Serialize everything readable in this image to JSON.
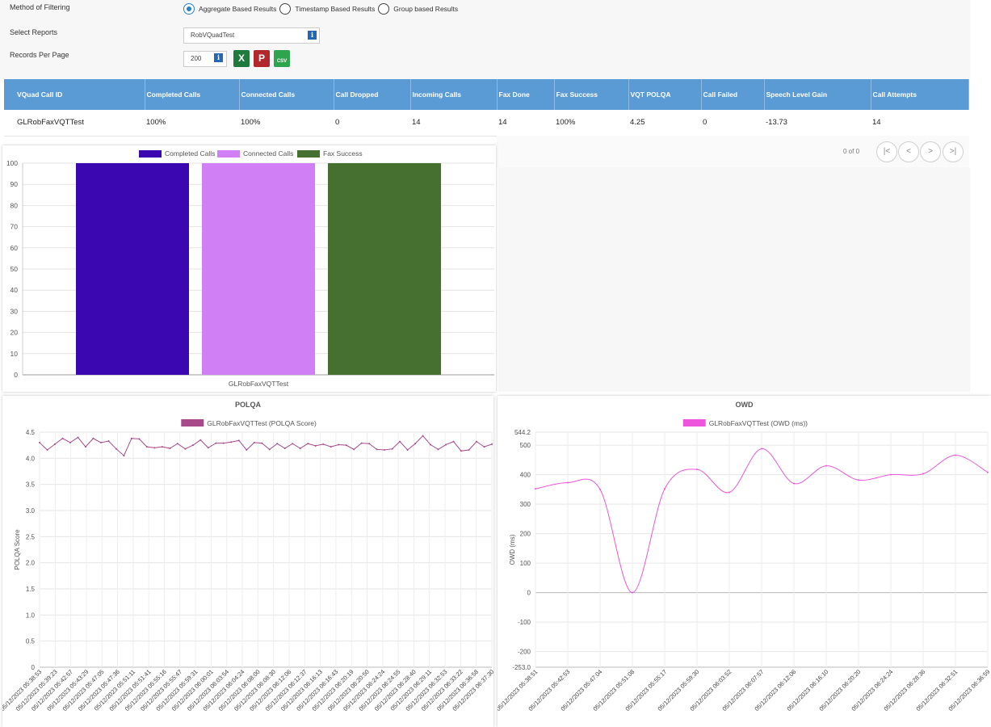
{
  "filter": {
    "method_label": "Method of Filtering",
    "options": [
      {
        "label": "Aggregate Based Results",
        "checked": true
      },
      {
        "label": "Timestamp Based Results",
        "checked": false
      },
      {
        "label": "Group based Results",
        "checked": false
      }
    ],
    "reports_label": "Select Reports",
    "report_value": "RobVQuadTest",
    "records_label": "Records Per Page",
    "records_value": "200",
    "info_glyph": "i",
    "export_icons": [
      "excel-icon",
      "pdf-icon",
      "csv-icon"
    ],
    "excel_glyph": "X",
    "pdf_glyph": "P",
    "csv_glyph": "CSV"
  },
  "table": {
    "headers": [
      "VQuad Call ID",
      "Completed Calls",
      "Connected Calls",
      "Call Dropped",
      "Incoming Calls",
      "Fax Done",
      "Fax Success",
      "VQT POLQA",
      "Call Failed",
      "Speech Level Gain",
      "Call Attempts"
    ],
    "rows": [
      [
        "GLRobFaxVQTTest",
        "100%",
        "100%",
        "0",
        "14",
        "14",
        "100%",
        "4.25",
        "0",
        "-13.73",
        "14"
      ]
    ]
  },
  "pager": {
    "text": "0 of 0",
    "first": "|<",
    "prev": "<",
    "next": ">",
    "last": ">|"
  },
  "colors": {
    "header_bg": "#5b9bd5",
    "completed": "#3a07b0",
    "connected": "#d07ff5",
    "fax": "#46702f",
    "polqa": "#a84a8a",
    "owd": "#ee55dd"
  },
  "chart_data": [
    {
      "type": "bar",
      "categories": [
        "GLRobFaxVQTTest"
      ],
      "series": [
        {
          "name": "Completed Calls",
          "values": [
            100
          ],
          "color": "#3a07b0"
        },
        {
          "name": "Connected Calls",
          "values": [
            100
          ],
          "color": "#d07ff5"
        },
        {
          "name": "Fax Success",
          "values": [
            100
          ],
          "color": "#46702f"
        }
      ],
      "yticks": [
        0,
        10,
        20,
        30,
        40,
        50,
        60,
        70,
        80,
        90,
        100
      ],
      "ylim": [
        0,
        100
      ],
      "legend": "top",
      "grid": true
    },
    {
      "type": "line",
      "title": "POLQA",
      "ylabel": "POLQA Score",
      "ylim": [
        0,
        4.5
      ],
      "yticks": [
        "0",
        "0.5",
        "1.0",
        "1.5",
        "2.0",
        "2.5",
        "3.0",
        "3.5",
        "4.0",
        "4.5"
      ],
      "series": [
        {
          "name": "GLRobFaxVQTTest (POLQA Score)",
          "color": "#a84a8a",
          "values": [
            4.3,
            4.16,
            4.27,
            4.38,
            4.3,
            4.4,
            4.22,
            4.38,
            4.3,
            4.33,
            4.18,
            4.05,
            4.38,
            4.37,
            4.22,
            4.2,
            4.22,
            4.19,
            4.28,
            4.18,
            4.25,
            4.35,
            4.2,
            4.29,
            4.29,
            4.31,
            4.34,
            4.16,
            4.3,
            4.29,
            4.17,
            4.28,
            4.19,
            4.28,
            4.19,
            4.28,
            4.24,
            4.27,
            4.22,
            4.26,
            4.25,
            4.17,
            4.29,
            4.28,
            4.17,
            4.16,
            4.18,
            4.32,
            4.16,
            4.28,
            4.43,
            4.26,
            4.17,
            4.26,
            4.32,
            4.14,
            4.16,
            4.32,
            4.22,
            4.27
          ]
        }
      ],
      "x_labels": [
        "05/12/2023 05:38:53",
        "05/12/2023 05:39:23",
        "05/12/2023 05:42:57",
        "05/12/2023 05:43:29",
        "05/12/2023 05:47:05",
        "05/12/2023 05:47:36",
        "05/12/2023 05:51:11",
        "05/12/2023 05:51:41",
        "05/12/2023 05:55:16",
        "05/12/2023 05:55:47",
        "05/12/2023 05:59:31",
        "05/12/2023 06:00:01",
        "05/12/2023 06:03:54",
        "05/12/2023 06:04:24",
        "05/12/2023 06:08:00",
        "05/12/2023 06:08:30",
        "05/12/2023 06:12:06",
        "05/12/2023 06:12:37",
        "05/12/2023 06:16:13",
        "05/12/2023 06:16:43",
        "05/12/2023 06:20:19",
        "05/12/2023 06:20:50",
        "05/12/2023 06:24:24",
        "05/12/2023 06:24:55",
        "05/12/2023 06:28:40",
        "05/12/2023 06:29:11",
        "05/12/2023 06:32:53",
        "05/12/2023 06:33:22",
        "05/12/2023 06:36:58",
        "05/12/2023 06:37:30"
      ],
      "legend": "top",
      "grid": true
    },
    {
      "type": "line",
      "title": "OWD",
      "ylabel": "OWD (ms)",
      "ylim": [
        -253.0,
        544.2
      ],
      "yticks": [
        "-253.0",
        "-200",
        "-100",
        "0",
        "100",
        "200",
        "300",
        "400",
        "500",
        "544.2"
      ],
      "series": [
        {
          "name": "GLRobFaxVQTTest (OWD (ms))",
          "color": "#ee55dd",
          "values": [
            352,
            373,
            350,
            0,
            352,
            418,
            340,
            488,
            370,
            430,
            382,
            400,
            403,
            466,
            408
          ]
        }
      ],
      "x_labels": [
        "05/12/2023 05:38:51",
        "05/12/2023 05:42:53",
        "05/12/2023 05:47:04",
        "05/12/2023 05:51:08",
        "05/12/2023 05:55:17",
        "05/12/2023 05:59:30",
        "05/12/2023 06:03:52",
        "05/12/2023 06:07:57",
        "05/12/2023 06:12:06",
        "05/12/2023 06:16:10",
        "05/12/2023 06:20:20",
        "05/12/2023 06:24:24",
        "05/12/2023 06:28:36",
        "05/12/2023 06:32:51",
        "05/12/2023 06:36:59"
      ],
      "legend": "top",
      "grid": true
    }
  ]
}
